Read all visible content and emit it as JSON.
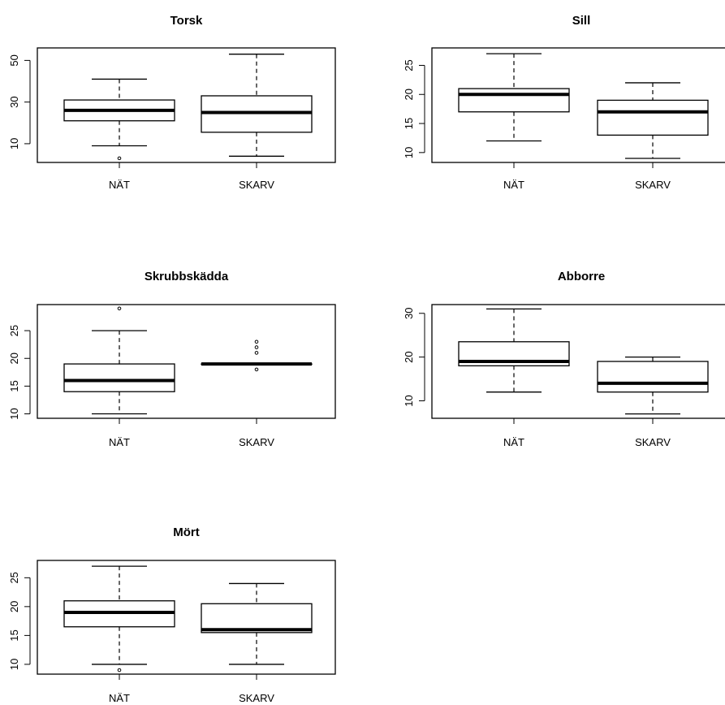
{
  "chart_data": [
    {
      "type": "boxplot",
      "title": "Torsk",
      "categories": [
        "NÄT",
        "SKARV"
      ],
      "y_ticks": [
        10,
        30,
        50
      ],
      "ylim": [
        1,
        56
      ],
      "boxes": [
        {
          "category": "NÄT",
          "whisker_low": 9,
          "q1": 21,
          "median": 26,
          "q3": 31,
          "whisker_high": 41,
          "outliers": [
            3
          ]
        },
        {
          "category": "SKARV",
          "whisker_low": 4,
          "q1": 15.5,
          "median": 25,
          "q3": 33,
          "whisker_high": 53,
          "outliers": []
        }
      ]
    },
    {
      "type": "boxplot",
      "title": "Sill",
      "categories": [
        "NÄT",
        "SKARV"
      ],
      "y_ticks": [
        10,
        15,
        20,
        25
      ],
      "ylim": [
        8.3,
        28
      ],
      "boxes": [
        {
          "category": "NÄT",
          "whisker_low": 12,
          "q1": 17,
          "median": 20,
          "q3": 21,
          "whisker_high": 27,
          "outliers": []
        },
        {
          "category": "SKARV",
          "whisker_low": 9,
          "q1": 13,
          "median": 17,
          "q3": 19,
          "whisker_high": 22,
          "outliers": []
        }
      ]
    },
    {
      "type": "boxplot",
      "title": "Skrubbskädda",
      "categories": [
        "NÄT",
        "SKARV"
      ],
      "y_ticks": [
        10,
        15,
        20,
        25
      ],
      "ylim": [
        9.2,
        29.7
      ],
      "boxes": [
        {
          "category": "NÄT",
          "whisker_low": 10,
          "q1": 14,
          "median": 16,
          "q3": 19,
          "whisker_high": 25,
          "outliers": [
            29
          ]
        },
        {
          "category": "SKARV",
          "whisker_low": 19,
          "q1": 19,
          "median": 19,
          "q3": 19,
          "whisker_high": 19,
          "outliers": [
            18,
            21,
            22,
            23
          ]
        }
      ]
    },
    {
      "type": "boxplot",
      "title": "Abborre",
      "categories": [
        "NÄT",
        "SKARV"
      ],
      "y_ticks": [
        10,
        20,
        30
      ],
      "ylim": [
        6,
        32
      ],
      "boxes": [
        {
          "category": "NÄT",
          "whisker_low": 12,
          "q1": 18,
          "median": 19,
          "q3": 23.5,
          "whisker_high": 31,
          "outliers": []
        },
        {
          "category": "SKARV",
          "whisker_low": 7,
          "q1": 12,
          "median": 14,
          "q3": 19,
          "whisker_high": 20,
          "outliers": []
        }
      ]
    },
    {
      "type": "boxplot",
      "title": "Mört",
      "categories": [
        "NÄT",
        "SKARV"
      ],
      "y_ticks": [
        10,
        15,
        20,
        25
      ],
      "ylim": [
        8.3,
        28
      ],
      "boxes": [
        {
          "category": "NÄT",
          "whisker_low": 10,
          "q1": 16.5,
          "median": 19,
          "q3": 21,
          "whisker_high": 27,
          "outliers": [
            9
          ]
        },
        {
          "category": "SKARV",
          "whisker_low": 10,
          "q1": 15.5,
          "median": 16,
          "q3": 20.5,
          "whisker_high": 24,
          "outliers": []
        }
      ]
    }
  ]
}
